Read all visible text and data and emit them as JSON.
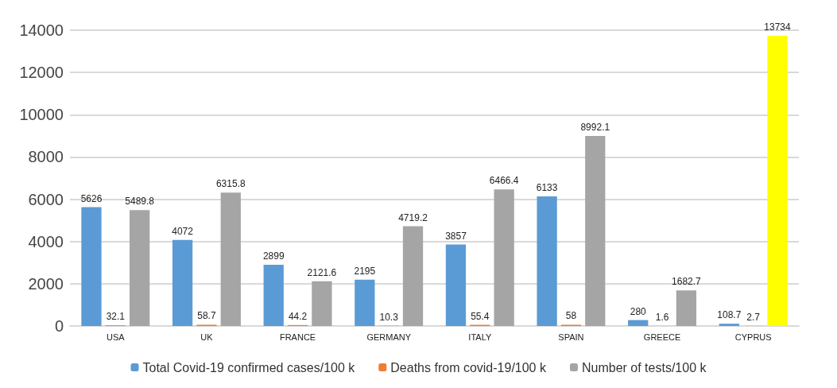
{
  "chart_data": {
    "type": "bar",
    "categories": [
      "USA",
      "UK",
      "FRANCE",
      "GERMANY",
      "ITALY",
      "SPAIN",
      "GREECE",
      "CYPRUS"
    ],
    "series": [
      {
        "name": "Total Covid-19 confirmed cases/100 k",
        "color": "#5b9bd5",
        "values": [
          5626,
          4072,
          2899,
          2195,
          3857,
          6133,
          280,
          108.7
        ]
      },
      {
        "name": "Deaths from covid-19/100 k",
        "color": "#ed7d31",
        "values": [
          32.1,
          58.7,
          44.2,
          10.3,
          55.4,
          58,
          1.6,
          2.7
        ]
      },
      {
        "name": "Number of tests/100 k",
        "color": "#a5a5a5",
        "colors": [
          "#a5a5a5",
          "#a5a5a5",
          "#a5a5a5",
          "#a5a5a5",
          "#a5a5a5",
          "#a5a5a5",
          "#a5a5a5",
          "#ffff00"
        ],
        "values": [
          5489.8,
          6315.8,
          2121.6,
          4719.2,
          6466.4,
          8992.1,
          1682.7,
          13734
        ]
      }
    ],
    "ylim": [
      0,
      14000
    ],
    "yticks": [
      0,
      2000,
      4000,
      6000,
      8000,
      10000,
      12000,
      14000
    ],
    "grid": "y",
    "legend": "bottom",
    "data_labels": true
  }
}
